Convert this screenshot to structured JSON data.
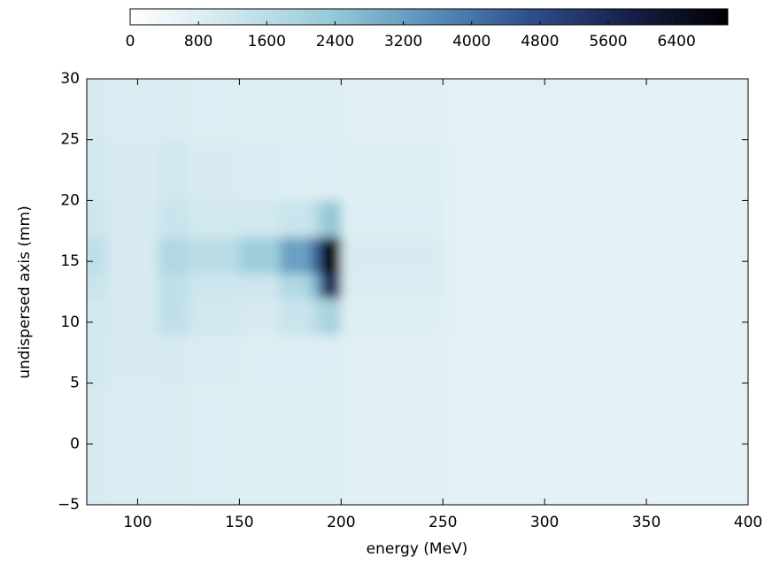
{
  "chart_data": {
    "type": "heatmap",
    "xlabel": "energy (MeV)",
    "ylabel": "undispersed axis (mm)",
    "x_edges": [
      75,
      85,
      110,
      125,
      150,
      170,
      185,
      190,
      200,
      250,
      300,
      350,
      400
    ],
    "y_edges": [
      -5,
      0,
      5,
      9,
      12,
      14,
      17,
      20,
      25,
      30
    ],
    "values": [
      [
        1000,
        900,
        900,
        850,
        800,
        800,
        800,
        800,
        750,
        700,
        700,
        650
      ],
      [
        1000,
        900,
        900,
        850,
        800,
        800,
        800,
        800,
        750,
        700,
        700,
        650
      ],
      [
        1100,
        950,
        1000,
        900,
        850,
        850,
        850,
        850,
        750,
        700,
        700,
        650
      ],
      [
        1100,
        1000,
        1500,
        1100,
        1000,
        1300,
        1600,
        2000,
        800,
        700,
        700,
        650
      ],
      [
        1300,
        1000,
        1500,
        1200,
        1200,
        1800,
        2800,
        5500,
        900,
        700,
        700,
        650
      ],
      [
        1500,
        1000,
        1800,
        1600,
        2200,
        3200,
        4200,
        7000,
        950,
        700,
        700,
        650
      ],
      [
        1200,
        1000,
        1300,
        1100,
        1100,
        1300,
        1600,
        2400,
        850,
        700,
        700,
        650
      ],
      [
        1100,
        950,
        1100,
        950,
        900,
        850,
        850,
        850,
        800,
        700,
        700,
        650
      ],
      [
        1000,
        900,
        900,
        850,
        800,
        800,
        800,
        800,
        750,
        700,
        700,
        650
      ]
    ],
    "xlim": [
      75,
      400
    ],
    "xticks": [
      100,
      150,
      200,
      250,
      300,
      350,
      400
    ],
    "ylim": [
      -5,
      30
    ],
    "yticks": [
      {
        "value": -5,
        "label": "−5"
      },
      0,
      5,
      10,
      15,
      20,
      25,
      30
    ],
    "clim": [
      0,
      7000
    ],
    "cticks": [
      0,
      800,
      1600,
      2400,
      3200,
      4000,
      4800,
      5600,
      6400
    ],
    "colormap": [
      "#ffffff",
      "#cfe7ee",
      "#98cbd9",
      "#5a91bb",
      "#2f4f8c",
      "#172048",
      "#000000"
    ]
  }
}
